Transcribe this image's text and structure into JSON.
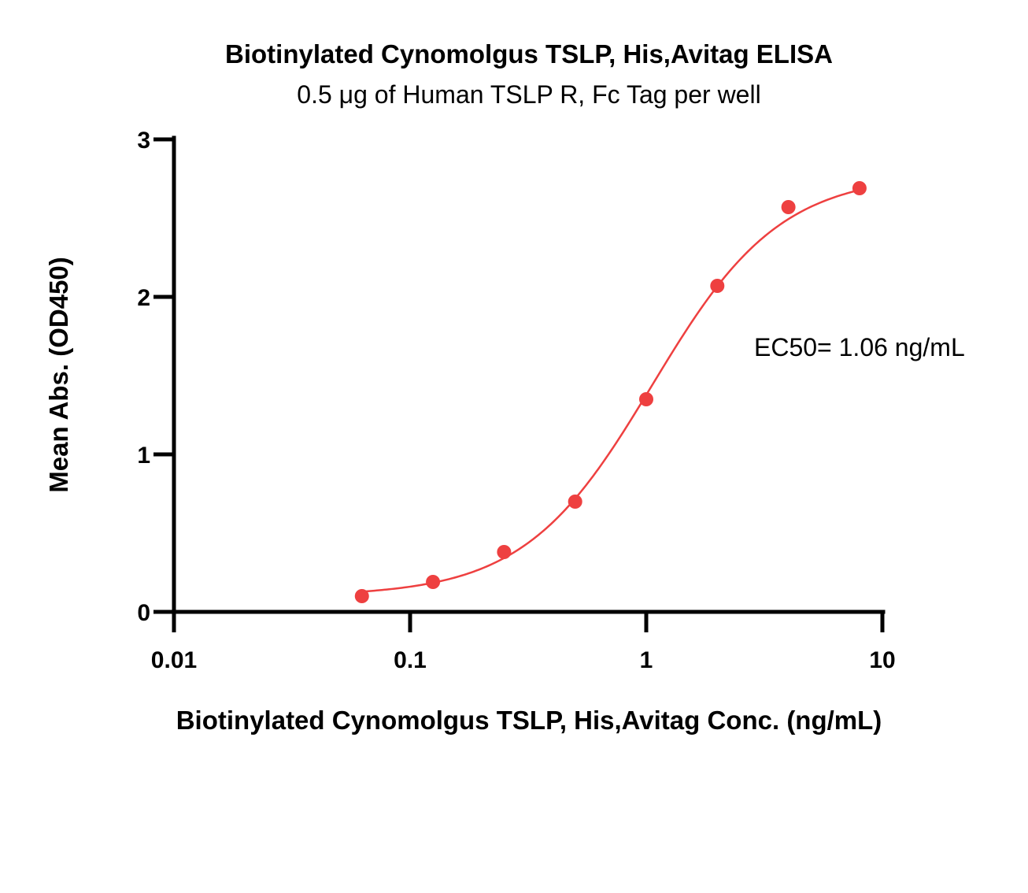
{
  "chart_data": {
    "type": "scatter",
    "title": "Biotinylated Cynomolgus TSLP, His,Avitag ELISA",
    "subtitle": "0.5 μg of Human TSLP R, Fc Tag per well",
    "xlabel": "Biotinylated Cynomolgus TSLP, His,Avitag Conc. (ng/mL)",
    "ylabel": "Mean Abs. (OD450)",
    "x_scale": "log",
    "xlim": [
      0.01,
      10
    ],
    "ylim": [
      0,
      3
    ],
    "x_ticks": [
      0.01,
      0.1,
      1,
      10
    ],
    "x_tick_labels": [
      "0.01",
      "0.1",
      "1",
      "10"
    ],
    "y_ticks": [
      0,
      1,
      2,
      3
    ],
    "y_tick_labels": [
      "0",
      "1",
      "2",
      "3"
    ],
    "grid": false,
    "legend": "none",
    "series": [
      {
        "x": [
          0.0625,
          0.125,
          0.25,
          0.5,
          1,
          2,
          4,
          8
        ],
        "y": [
          0.1,
          0.19,
          0.38,
          0.7,
          1.35,
          2.07,
          2.57,
          2.69
        ],
        "fit": "four-parameter logistic",
        "fit_params": {
          "bottom": 0.1,
          "top": 2.78,
          "ec50": 1.06,
          "hill": 1.6
        }
      }
    ],
    "annotations": [
      {
        "text": "EC50= 1.06 ng/mL"
      }
    ],
    "colors": {
      "series": "#ee4040",
      "axes": "#000000"
    }
  }
}
